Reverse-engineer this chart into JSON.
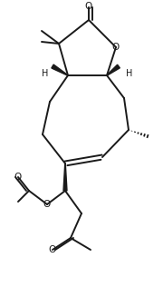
{
  "bg_color": "#ffffff",
  "line_color": "#1a1a1a",
  "line_width": 1.4,
  "figsize": [
    1.8,
    3.27
  ],
  "dpi": 100,
  "xlim": [
    0,
    180
  ],
  "ylim": [
    0,
    327
  ]
}
